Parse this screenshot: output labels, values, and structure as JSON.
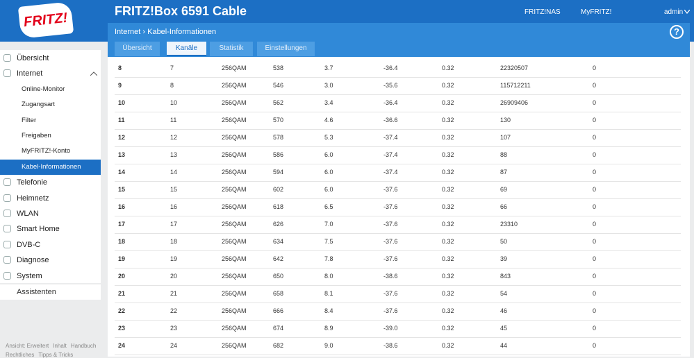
{
  "header": {
    "logo": "FRITZ!",
    "title": "FRITZ!Box 6591 Cable",
    "links": [
      "FRITZ!NAS",
      "MyFRITZ!"
    ],
    "user": "admin"
  },
  "breadcrumb": {
    "items": [
      "Internet",
      "Kabel-Informationen"
    ],
    "help": "?"
  },
  "tabs": {
    "items": [
      "Übersicht",
      "Kanäle",
      "Statistik",
      "Einstellungen"
    ],
    "active": 1
  },
  "sidebar": {
    "items": [
      {
        "label": "Übersicht",
        "level": 0
      },
      {
        "label": "Internet",
        "level": 0,
        "open": true
      },
      {
        "label": "Online-Monitor",
        "level": 1
      },
      {
        "label": "Zugangsart",
        "level": 1
      },
      {
        "label": "Filter",
        "level": 1
      },
      {
        "label": "Freigaben",
        "level": 1
      },
      {
        "label": "MyFRITZ!-Konto",
        "level": 1
      },
      {
        "label": "Kabel-Informationen",
        "level": 1,
        "selected": true
      },
      {
        "label": "Telefonie",
        "level": 0
      },
      {
        "label": "Heimnetz",
        "level": 0
      },
      {
        "label": "WLAN",
        "level": 0
      },
      {
        "label": "Smart Home",
        "level": 0
      },
      {
        "label": "DVB-C",
        "level": 0
      },
      {
        "label": "Diagnose",
        "level": 0
      },
      {
        "label": "System",
        "level": 0
      }
    ],
    "assistant": "Assistenten",
    "footer": [
      [
        "Ansicht: Erweitert",
        "Inhalt",
        "Handbuch"
      ],
      [
        "Rechtliches",
        "Tipps & Tricks"
      ]
    ]
  },
  "table": {
    "rows": [
      [
        "8",
        "7",
        "256QAM",
        "538",
        "3.7",
        "-36.4",
        "0.32",
        "22320507",
        "0"
      ],
      [
        "9",
        "8",
        "256QAM",
        "546",
        "3.0",
        "-35.6",
        "0.32",
        "115712211",
        "0"
      ],
      [
        "10",
        "10",
        "256QAM",
        "562",
        "3.4",
        "-36.4",
        "0.32",
        "26909406",
        "0"
      ],
      [
        "11",
        "11",
        "256QAM",
        "570",
        "4.6",
        "-36.6",
        "0.32",
        "130",
        "0"
      ],
      [
        "12",
        "12",
        "256QAM",
        "578",
        "5.3",
        "-37.4",
        "0.32",
        "107",
        "0"
      ],
      [
        "13",
        "13",
        "256QAM",
        "586",
        "6.0",
        "-37.4",
        "0.32",
        "88",
        "0"
      ],
      [
        "14",
        "14",
        "256QAM",
        "594",
        "6.0",
        "-37.4",
        "0.32",
        "87",
        "0"
      ],
      [
        "15",
        "15",
        "256QAM",
        "602",
        "6.0",
        "-37.6",
        "0.32",
        "69",
        "0"
      ],
      [
        "16",
        "16",
        "256QAM",
        "618",
        "6.5",
        "-37.6",
        "0.32",
        "66",
        "0"
      ],
      [
        "17",
        "17",
        "256QAM",
        "626",
        "7.0",
        "-37.6",
        "0.32",
        "23310",
        "0"
      ],
      [
        "18",
        "18",
        "256QAM",
        "634",
        "7.5",
        "-37.6",
        "0.32",
        "50",
        "0"
      ],
      [
        "19",
        "19",
        "256QAM",
        "642",
        "7.8",
        "-37.6",
        "0.32",
        "39",
        "0"
      ],
      [
        "20",
        "20",
        "256QAM",
        "650",
        "8.0",
        "-38.6",
        "0.32",
        "843",
        "0"
      ],
      [
        "21",
        "21",
        "256QAM",
        "658",
        "8.1",
        "-37.6",
        "0.32",
        "54",
        "0"
      ],
      [
        "22",
        "22",
        "256QAM",
        "666",
        "8.4",
        "-37.6",
        "0.32",
        "46",
        "0"
      ],
      [
        "23",
        "23",
        "256QAM",
        "674",
        "8.9",
        "-39.0",
        "0.32",
        "45",
        "0"
      ],
      [
        "24",
        "24",
        "256QAM",
        "682",
        "9.0",
        "-38.6",
        "0.32",
        "44",
        "0"
      ]
    ]
  }
}
